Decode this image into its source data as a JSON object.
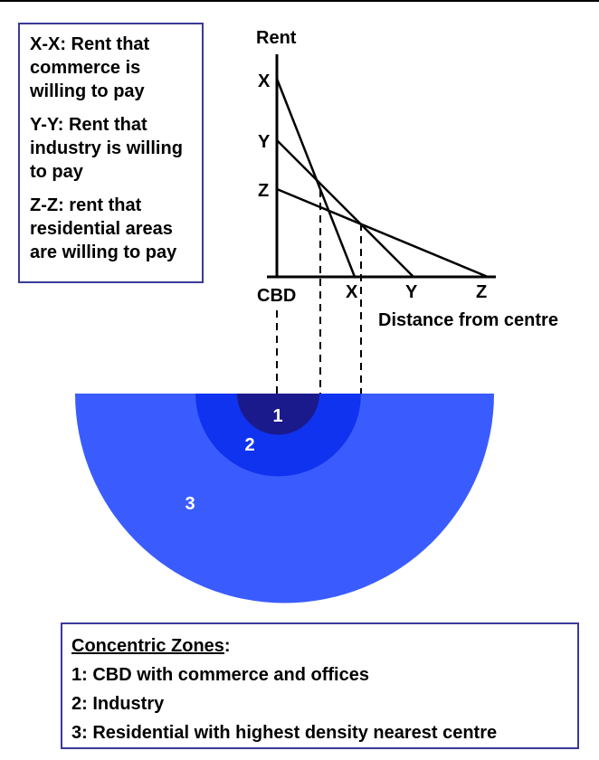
{
  "legend": {
    "commerce": "X-X: Rent that\ncommerce is\nwilling to pay",
    "industry": "Y-Y: Rent that\nindustry is willing\nto pay",
    "residential": "Z-Z: rent that\nresidential areas\nare willing to pay"
  },
  "graph": {
    "y_axis_label": "Rent",
    "x_axis_label": "Distance from centre",
    "origin_label": "CBD",
    "y_ticks": [
      "X",
      "Y",
      "Z"
    ],
    "x_ticks": [
      "X",
      "Y",
      "Z"
    ]
  },
  "zones": {
    "labels": [
      "1",
      "2",
      "3"
    ],
    "colors": [
      "#1a1a8c",
      "#1033f0",
      "#3a5cff"
    ]
  },
  "key": {
    "heading": "Concentric Zones",
    "heading_suffix": ":",
    "items": [
      "1: CBD with commerce and offices",
      "2: Industry",
      "3: Residential with highest density nearest centre"
    ]
  }
}
